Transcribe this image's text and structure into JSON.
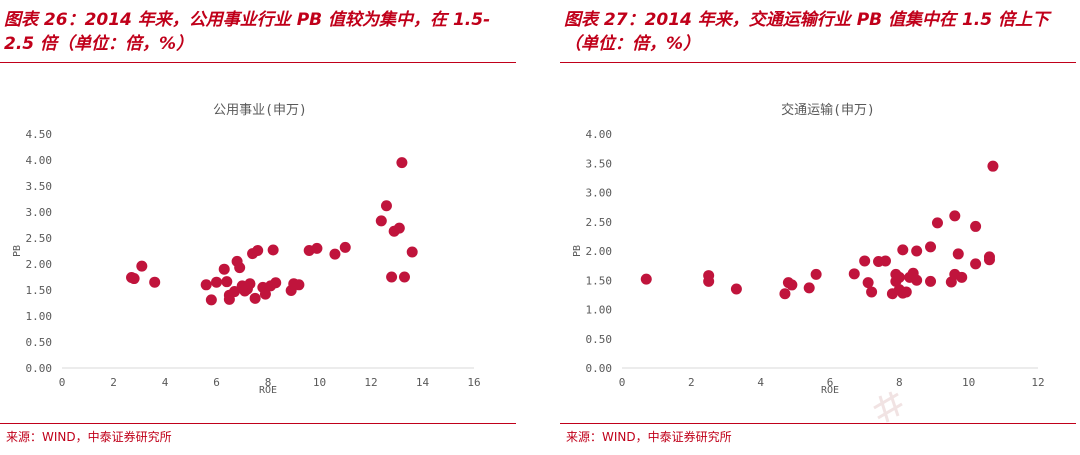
{
  "figures": [
    {
      "title": "图表 26：2014 年来，公用事业行业 PB 值较为集中，在 1.5-2.5 倍（单位：倍，%）",
      "source": "来源：WIND，中泰证券研究所"
    },
    {
      "title": "图表 27：2014 年来，交通运输行业 PB 值集中在 1.5 倍上下（单位：倍，%）",
      "source": "来源：WIND，中泰证券研究所"
    }
  ],
  "colors": {
    "accent": "#c0001a",
    "point": "#c0143c",
    "axis": "#d9d9d9",
    "tick_text": "#595959"
  },
  "chart_data": [
    {
      "type": "scatter",
      "title": "公用事业(申万)",
      "xlabel": "ROE",
      "ylabel": "PB",
      "xlim": [
        0,
        16
      ],
      "ylim": [
        0,
        4.5
      ],
      "x_ticks": [
        "0",
        "2",
        "4",
        "6",
        "8",
        "10",
        "12",
        "14",
        "16"
      ],
      "y_ticks": [
        "0.00",
        "0.50",
        "1.00",
        "1.50",
        "2.00",
        "2.50",
        "3.00",
        "3.50",
        "4.00",
        "4.50"
      ],
      "grid": false,
      "points": [
        {
          "x": 2.7,
          "y": 1.74
        },
        {
          "x": 2.8,
          "y": 1.72
        },
        {
          "x": 3.1,
          "y": 1.96
        },
        {
          "x": 3.6,
          "y": 1.65
        },
        {
          "x": 5.6,
          "y": 1.6
        },
        {
          "x": 5.8,
          "y": 1.31
        },
        {
          "x": 6.0,
          "y": 1.65
        },
        {
          "x": 6.3,
          "y": 1.9
        },
        {
          "x": 6.4,
          "y": 1.66
        },
        {
          "x": 6.5,
          "y": 1.4
        },
        {
          "x": 6.5,
          "y": 1.32
        },
        {
          "x": 6.7,
          "y": 1.47
        },
        {
          "x": 6.8,
          "y": 2.05
        },
        {
          "x": 6.9,
          "y": 1.93
        },
        {
          "x": 7.0,
          "y": 1.58
        },
        {
          "x": 7.1,
          "y": 1.48
        },
        {
          "x": 7.2,
          "y": 1.52
        },
        {
          "x": 7.3,
          "y": 1.62
        },
        {
          "x": 7.4,
          "y": 2.2
        },
        {
          "x": 7.6,
          "y": 2.26
        },
        {
          "x": 7.5,
          "y": 1.34
        },
        {
          "x": 7.8,
          "y": 1.55
        },
        {
          "x": 7.9,
          "y": 1.42
        },
        {
          "x": 8.1,
          "y": 1.58
        },
        {
          "x": 8.2,
          "y": 2.27
        },
        {
          "x": 8.3,
          "y": 1.64
        },
        {
          "x": 8.9,
          "y": 1.49
        },
        {
          "x": 9.0,
          "y": 1.62
        },
        {
          "x": 9.2,
          "y": 1.6
        },
        {
          "x": 9.6,
          "y": 2.26
        },
        {
          "x": 9.9,
          "y": 2.3
        },
        {
          "x": 10.6,
          "y": 2.19
        },
        {
          "x": 11.0,
          "y": 2.32
        },
        {
          "x": 12.4,
          "y": 2.83
        },
        {
          "x": 12.6,
          "y": 3.12
        },
        {
          "x": 12.8,
          "y": 1.75
        },
        {
          "x": 12.9,
          "y": 2.63
        },
        {
          "x": 13.1,
          "y": 2.69
        },
        {
          "x": 13.2,
          "y": 3.95
        },
        {
          "x": 13.3,
          "y": 1.75
        },
        {
          "x": 13.6,
          "y": 2.23
        }
      ]
    },
    {
      "type": "scatter",
      "title": "交通运输(申万)",
      "xlabel": "ROE",
      "ylabel": "PB",
      "xlim": [
        0,
        12
      ],
      "ylim": [
        0,
        4
      ],
      "x_ticks": [
        "0",
        "2",
        "4",
        "6",
        "8",
        "10",
        "12"
      ],
      "y_ticks": [
        "0.00",
        "0.50",
        "1.00",
        "1.50",
        "2.00",
        "2.50",
        "3.00",
        "3.50",
        "4.00"
      ],
      "grid": false,
      "points": [
        {
          "x": 0.7,
          "y": 1.52
        },
        {
          "x": 2.5,
          "y": 1.58
        },
        {
          "x": 2.5,
          "y": 1.48
        },
        {
          "x": 3.3,
          "y": 1.35
        },
        {
          "x": 4.7,
          "y": 1.27
        },
        {
          "x": 4.8,
          "y": 1.46
        },
        {
          "x": 4.9,
          "y": 1.42
        },
        {
          "x": 5.4,
          "y": 1.37
        },
        {
          "x": 5.6,
          "y": 1.6
        },
        {
          "x": 6.7,
          "y": 1.61
        },
        {
          "x": 7.0,
          "y": 1.83
        },
        {
          "x": 7.1,
          "y": 1.46
        },
        {
          "x": 7.2,
          "y": 1.3
        },
        {
          "x": 7.4,
          "y": 1.82
        },
        {
          "x": 7.6,
          "y": 1.83
        },
        {
          "x": 7.8,
          "y": 1.27
        },
        {
          "x": 7.9,
          "y": 1.6
        },
        {
          "x": 7.9,
          "y": 1.48
        },
        {
          "x": 8.0,
          "y": 1.34
        },
        {
          "x": 8.1,
          "y": 1.28
        },
        {
          "x": 8.0,
          "y": 1.55
        },
        {
          "x": 8.1,
          "y": 2.02
        },
        {
          "x": 8.2,
          "y": 1.3
        },
        {
          "x": 8.3,
          "y": 1.55
        },
        {
          "x": 8.4,
          "y": 1.62
        },
        {
          "x": 8.5,
          "y": 2.0
        },
        {
          "x": 8.5,
          "y": 1.5
        },
        {
          "x": 8.9,
          "y": 2.07
        },
        {
          "x": 8.9,
          "y": 1.48
        },
        {
          "x": 9.1,
          "y": 2.48
        },
        {
          "x": 9.5,
          "y": 1.47
        },
        {
          "x": 9.6,
          "y": 2.6
        },
        {
          "x": 9.6,
          "y": 1.6
        },
        {
          "x": 9.7,
          "y": 1.95
        },
        {
          "x": 9.8,
          "y": 1.55
        },
        {
          "x": 10.2,
          "y": 2.42
        },
        {
          "x": 10.2,
          "y": 1.78
        },
        {
          "x": 10.6,
          "y": 1.85
        },
        {
          "x": 10.6,
          "y": 1.9
        },
        {
          "x": 10.7,
          "y": 3.45
        }
      ]
    }
  ]
}
